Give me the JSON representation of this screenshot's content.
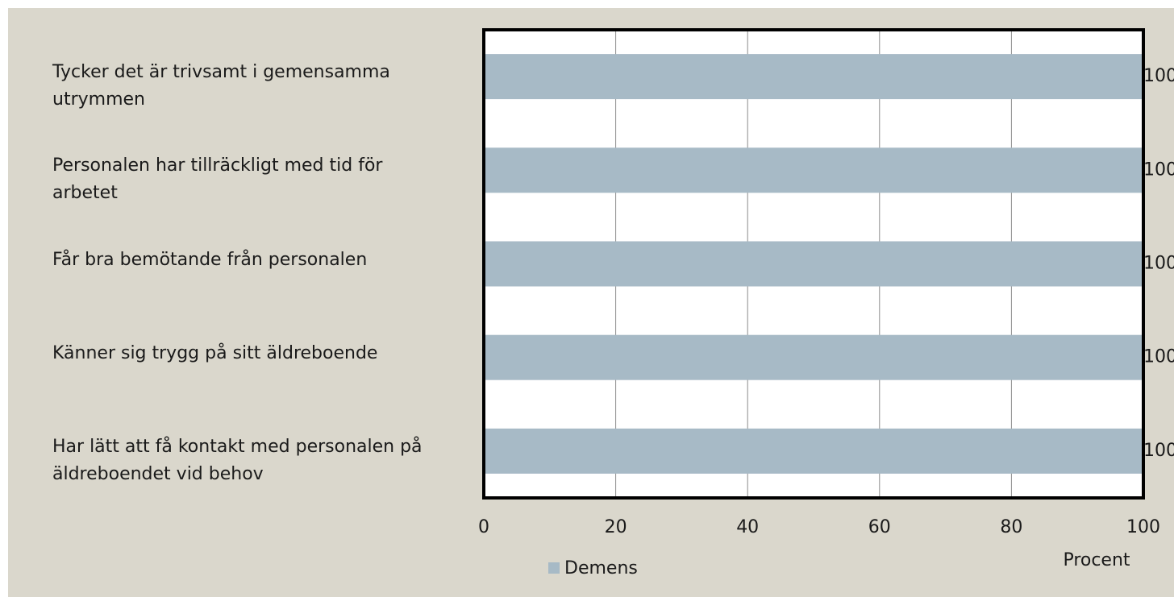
{
  "chart_data": {
    "type": "barh",
    "categories": [
      "Tycker det är trivsamt i gemensamma utrymmen",
      "Personalen har tillräckligt med tid för arbetet",
      "Får bra bemötande från personalen",
      "Känner sig trygg på sitt äldreboende",
      "Har lätt att få kontakt med personalen på äldreboendet vid behov"
    ],
    "series": [
      {
        "name": "Demens",
        "color": "#a7bac6",
        "values": [
          100,
          100,
          100,
          100,
          100
        ]
      }
    ],
    "xlabel": "Procent",
    "xlim": [
      0,
      100
    ],
    "xticks": [
      0,
      20,
      40,
      60,
      80,
      100
    ],
    "grid": true,
    "legend": "bottom"
  }
}
